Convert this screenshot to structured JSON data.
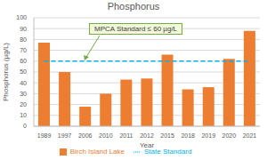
{
  "chart_data": {
    "type": "bar",
    "title": "Phosphorus",
    "x_label": "Year",
    "y_label": "Phosphorus (µg/L)",
    "categories": [
      "1989",
      "1997",
      "2006",
      "2010",
      "2011",
      "2012",
      "2015",
      "2018",
      "2019",
      "2020",
      "2021"
    ],
    "series": [
      {
        "name": "Birch Island Lake",
        "type": "bar",
        "color": "#ed7d31",
        "values": [
          77,
          50,
          18,
          30,
          43,
          44,
          66,
          34,
          36,
          62,
          88
        ]
      },
      {
        "name": "State Standard",
        "type": "line",
        "color": "#00b0f0",
        "line_style": "dashed",
        "values": [
          60,
          60,
          60,
          60,
          60,
          60,
          60,
          60,
          60,
          60,
          60
        ]
      }
    ],
    "ylim": [
      0,
      100
    ],
    "yticks": [
      0,
      10,
      20,
      30,
      40,
      50,
      60,
      70,
      80,
      90,
      100
    ],
    "grid": true,
    "legend": "bottom",
    "annotations": [
      {
        "text": "MPCA Standard ≤ 60 µg/L"
      }
    ]
  }
}
